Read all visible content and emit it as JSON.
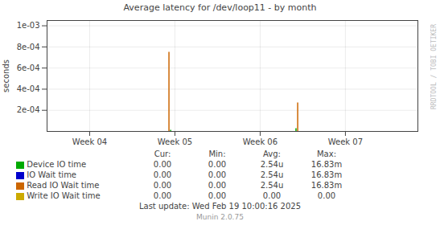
{
  "chart_data": {
    "type": "bar",
    "title": "Average latency for /dev/loop11 - by month",
    "y_label": "seconds",
    "xlim": [
      3.5,
      7.85
    ],
    "xticks": [
      {
        "value": 4,
        "label": "Week 04"
      },
      {
        "value": 5,
        "label": "Week 05"
      },
      {
        "value": 6,
        "label": "Week 06"
      },
      {
        "value": 7,
        "label": "Week 07"
      }
    ],
    "ylim": [
      0,
      0.00105
    ],
    "yticks": [
      {
        "value": 0.0002,
        "label": "2e-04"
      },
      {
        "value": 0.0004,
        "label": "4e-04"
      },
      {
        "value": 0.0006,
        "label": "6e-04"
      },
      {
        "value": 0.0008,
        "label": "8e-04"
      },
      {
        "value": 0.001,
        "label": "1e-03"
      }
    ],
    "grid": true,
    "legend_columns": [
      "Cur:",
      "Min:",
      "Avg:",
      "Max:"
    ],
    "series": [
      {
        "name": "Device IO time",
        "color": "#00aa00",
        "x": [
          4.95,
          6.42
        ],
        "values": [
          1.2e-05,
          2.7e-05
        ],
        "cur": "0.00",
        "min": "0.00",
        "avg": "2.54u",
        "max": "16.83m"
      },
      {
        "name": "IO Wait time",
        "color": "#0000cc",
        "x": [],
        "values": [],
        "cur": "0.00",
        "min": "0.00",
        "avg": "2.54u",
        "max": "16.83m"
      },
      {
        "name": "Read IO Wait time",
        "color": "#cc6600",
        "x": [
          4.93,
          6.44
        ],
        "values": [
          0.00075,
          0.00027
        ],
        "cur": "0.00",
        "min": "0.00",
        "avg": "2.54u",
        "max": "16.83m"
      },
      {
        "name": "Write IO Wait time",
        "color": "#ccaa00",
        "x": [],
        "values": [],
        "cur": "0.00",
        "min": "0.00",
        "avg": "0.00",
        "max": "0.00"
      }
    ],
    "caption": "Last update: Wed Feb 19 10:00:16 2025",
    "footer": "Munin 2.0.75",
    "watermark": "RRDTOOL / TOBI OETIKER"
  }
}
